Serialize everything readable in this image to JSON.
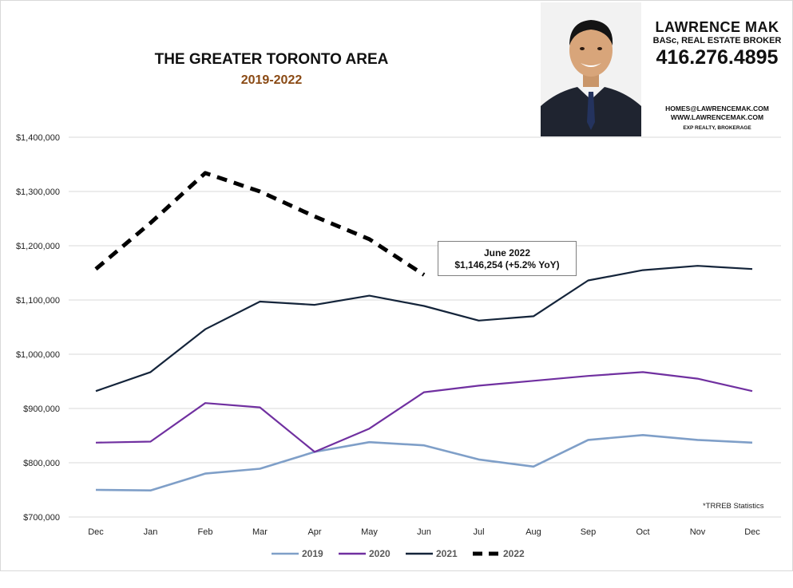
{
  "header": {
    "title": "THE GREATER TORONTO AREA",
    "subtitle": "2019-2022"
  },
  "agent_card": {
    "name": "LAWRENCE MAK",
    "credentials": "BASc, REAL ESTATE BROKER",
    "phone": "416.276.4895",
    "email": "HOMES@LAWRENCEMAK.COM",
    "website": "WWW.LAWRENCEMAK.COM",
    "brokerage": "EXP REALTY, BROKERAGE"
  },
  "callout": {
    "line1": "June 2022",
    "line2": "$1,146,254  (+5.2%  YoY)"
  },
  "source_note": "*TRREB Statistics",
  "colors": {
    "2019": "#7f9fc8",
    "2020": "#7030a0",
    "2021": "#14243a",
    "2022": "#000000",
    "grid": "#d9d9d9",
    "subtitle": "#8a4a14"
  },
  "chart_data": {
    "type": "line",
    "categories": [
      "Dec",
      "Jan",
      "Feb",
      "Mar",
      "Apr",
      "May",
      "Jun",
      "Jul",
      "Aug",
      "Sep",
      "Oct",
      "Nov",
      "Dec"
    ],
    "yticks": [
      "$700,000",
      "$800,000",
      "$900,000",
      "$1,000,000",
      "$1,100,000",
      "$1,200,000",
      "$1,300,000",
      "$1,400,000"
    ],
    "ylim": [
      700000,
      1400000
    ],
    "grid": true,
    "legend_position": "bottom",
    "series": [
      {
        "name": "2019",
        "style": "solid",
        "values": [
          750000,
          749000,
          780000,
          789000,
          820000,
          838000,
          832000,
          806000,
          793000,
          842000,
          851000,
          842000,
          837000
        ]
      },
      {
        "name": "2020",
        "style": "solid",
        "values": [
          837000,
          839000,
          910000,
          902000,
          820000,
          863000,
          930000,
          942000,
          951000,
          960000,
          967000,
          955000,
          932000
        ]
      },
      {
        "name": "2021",
        "style": "solid",
        "values": [
          932000,
          967000,
          1046000,
          1097000,
          1091000,
          1108000,
          1089000,
          1062000,
          1070000,
          1136000,
          1155000,
          1163000,
          1157000
        ]
      },
      {
        "name": "2022",
        "style": "dashed",
        "values": [
          1157000,
          1242000,
          1334000,
          1300000,
          1254000,
          1212000,
          1146254,
          null,
          null,
          null,
          null,
          null,
          null
        ]
      }
    ]
  }
}
